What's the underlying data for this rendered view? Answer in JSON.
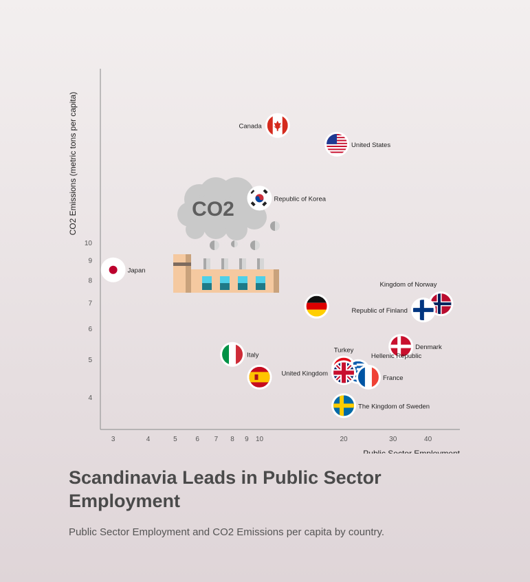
{
  "chart_data": {
    "type": "scatter",
    "title": "Scandinavia Leads in Public Sector Employment",
    "subtitle": "Public Sector Employment and CO2 Emissions per capita by country.",
    "xlabel": "Public Sector Employment",
    "ylabel": "CO2 Emissions (metric tons per capita)",
    "x_scale": "log",
    "y_scale": "log",
    "xlim": [
      2.7,
      52
    ],
    "ylim": [
      3.3,
      28
    ],
    "x_ticks": [
      3,
      4,
      5,
      6,
      7,
      8,
      9,
      10,
      20,
      30,
      40
    ],
    "y_ticks": [
      4,
      5,
      6,
      7,
      8,
      9,
      10
    ],
    "grid": false,
    "legend": "none",
    "points": [
      {
        "label": "Canada",
        "x": 11.6,
        "y": 20.0,
        "flag": "canada-flag",
        "label_side": "left"
      },
      {
        "label": "United States",
        "x": 18.9,
        "y": 17.9,
        "flag": "usa-flag",
        "label_side": "right"
      },
      {
        "label": "Republic of Korea",
        "x": 10.0,
        "y": 13.0,
        "flag": "korea-flag",
        "label_side": "right"
      },
      {
        "label": "Japan",
        "x": 3.0,
        "y": 8.5,
        "flag": "japan-flag",
        "label_side": "right"
      },
      {
        "label": "",
        "x": 16.0,
        "y": 6.85,
        "flag": "germany-flag",
        "label_side": "none"
      },
      {
        "label": "Kingdom of Norway",
        "x": 44.5,
        "y": 6.95,
        "flag": "norway-flag",
        "label_side": "above-left"
      },
      {
        "label": "Republic of Finland",
        "x": 38.5,
        "y": 6.7,
        "flag": "finland-flag",
        "label_side": "left"
      },
      {
        "label": "Denmark",
        "x": 32.0,
        "y": 5.4,
        "flag": "denmark-flag",
        "label_side": "right"
      },
      {
        "label": "Italy",
        "x": 8.0,
        "y": 5.15,
        "flag": "italy-flag",
        "label_side": "right"
      },
      {
        "label": "Turkey",
        "x": 20.0,
        "y": 4.75,
        "flag": "turkey-flag",
        "label_side": "above"
      },
      {
        "label": "Hellenic Republic",
        "x": 22.5,
        "y": 4.65,
        "flag": "greece-flag",
        "label_side": "above-right"
      },
      {
        "label": "United Kingdom",
        "x": 20.0,
        "y": 4.62,
        "flag": "uk-flag",
        "label_side": "left"
      },
      {
        "label": "France",
        "x": 24.5,
        "y": 4.5,
        "flag": "france-flag",
        "label_side": "right"
      },
      {
        "label": "",
        "x": 10.0,
        "y": 4.5,
        "flag": "spain-flag",
        "label_side": "none"
      },
      {
        "label": "The Kingdom of Sweden",
        "x": 20.0,
        "y": 3.8,
        "flag": "sweden-flag",
        "label_side": "right"
      }
    ],
    "illustration": {
      "name": "factory-co2-icon",
      "text": "CO2"
    }
  }
}
